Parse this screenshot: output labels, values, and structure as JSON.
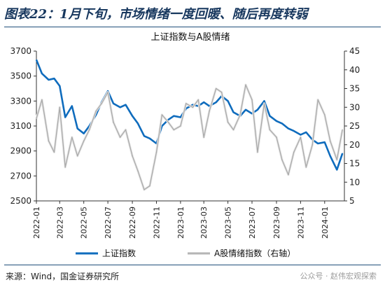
{
  "figure_title": "图表22：1月下旬，市场情绪一度回暖、随后再度转弱",
  "source_note": "来源：Wind，国金证券研究所",
  "watermark": "公众号 · 赵伟宏观探索",
  "colors": {
    "left_series": "#0f6cbd",
    "right_series": "#a9a9a9",
    "title": "#17375e",
    "rule": "#1f4e79"
  },
  "chart_data": {
    "type": "line",
    "title": "上证指数与A股情绪",
    "x_tick_labels": [
      "2022-01",
      "2022-03",
      "2022-05",
      "2022-07",
      "2022-09",
      "2022-11",
      "2023-01",
      "2023-03",
      "2023-05",
      "2023-07",
      "2023-09",
      "2023-11",
      "2024-01"
    ],
    "x_range": [
      "2022-01-01",
      "2024-02-20"
    ],
    "y_left": {
      "range": [
        2500,
        3700
      ],
      "ticks": [
        2500,
        2700,
        2900,
        3100,
        3300,
        3500,
        3700
      ]
    },
    "y_right": {
      "range": [
        5,
        45
      ],
      "ticks": [
        5,
        10,
        15,
        20,
        25,
        30,
        35,
        40,
        45
      ]
    },
    "grid": false,
    "legend_position": "bottom",
    "series": [
      {
        "name": "上证指数",
        "axis": "left",
        "x": [
          "2022-01-01",
          "2022-01-15",
          "2022-02-01",
          "2022-02-15",
          "2022-03-01",
          "2022-03-15",
          "2022-04-01",
          "2022-04-15",
          "2022-05-01",
          "2022-05-15",
          "2022-06-01",
          "2022-06-15",
          "2022-07-01",
          "2022-07-15",
          "2022-08-01",
          "2022-08-15",
          "2022-09-01",
          "2022-09-15",
          "2022-10-01",
          "2022-10-15",
          "2022-11-01",
          "2022-11-15",
          "2022-12-01",
          "2022-12-15",
          "2023-01-01",
          "2023-01-15",
          "2023-02-01",
          "2023-02-15",
          "2023-03-01",
          "2023-03-15",
          "2023-04-01",
          "2023-04-15",
          "2023-05-01",
          "2023-05-15",
          "2023-06-01",
          "2023-06-15",
          "2023-07-01",
          "2023-07-15",
          "2023-08-01",
          "2023-08-15",
          "2023-09-01",
          "2023-09-15",
          "2023-10-01",
          "2023-10-15",
          "2023-11-01",
          "2023-11-15",
          "2023-12-01",
          "2023-12-15",
          "2024-01-01",
          "2024-01-15",
          "2024-02-01",
          "2024-02-15"
        ],
        "y": [
          3630,
          3520,
          3470,
          3480,
          3420,
          3170,
          3260,
          3080,
          3040,
          3100,
          3190,
          3290,
          3380,
          3280,
          3250,
          3270,
          3180,
          3120,
          3020,
          3000,
          2960,
          3100,
          3150,
          3180,
          3170,
          3240,
          3270,
          3260,
          3290,
          3260,
          3290,
          3340,
          3300,
          3210,
          3180,
          3230,
          3200,
          3230,
          3300,
          3180,
          3140,
          3120,
          3080,
          3060,
          3030,
          3050,
          2990,
          2960,
          2970,
          2860,
          2750,
          2880
        ]
      },
      {
        "name": "A股情绪指数（右轴）",
        "axis": "right",
        "x": [
          "2022-01-01",
          "2022-01-15",
          "2022-02-01",
          "2022-02-15",
          "2022-03-01",
          "2022-03-15",
          "2022-04-01",
          "2022-04-15",
          "2022-05-01",
          "2022-05-15",
          "2022-06-01",
          "2022-06-15",
          "2022-07-01",
          "2022-07-15",
          "2022-08-01",
          "2022-08-15",
          "2022-09-01",
          "2022-09-15",
          "2022-10-01",
          "2022-10-15",
          "2022-11-01",
          "2022-11-15",
          "2022-12-01",
          "2022-12-15",
          "2023-01-01",
          "2023-01-15",
          "2023-02-01",
          "2023-02-15",
          "2023-03-01",
          "2023-03-15",
          "2023-04-01",
          "2023-04-15",
          "2023-05-01",
          "2023-05-15",
          "2023-06-01",
          "2023-06-15",
          "2023-07-01",
          "2023-07-15",
          "2023-08-01",
          "2023-08-15",
          "2023-09-01",
          "2023-09-15",
          "2023-10-01",
          "2023-10-15",
          "2023-11-01",
          "2023-11-15",
          "2023-12-01",
          "2023-12-15",
          "2024-01-01",
          "2024-01-15",
          "2024-02-01",
          "2024-02-15"
        ],
        "y": [
          27,
          32,
          21,
          18,
          30,
          14,
          22,
          17,
          21,
          24,
          29,
          31,
          34,
          26,
          22,
          24,
          17,
          13,
          8,
          9,
          18,
          28,
          26,
          24,
          25,
          31,
          30,
          32,
          22,
          29,
          35,
          34,
          26,
          24,
          28,
          36,
          32,
          18,
          31,
          24,
          22,
          16,
          12,
          18,
          22,
          14,
          20,
          32,
          28,
          21,
          16,
          24
        ]
      }
    ]
  }
}
